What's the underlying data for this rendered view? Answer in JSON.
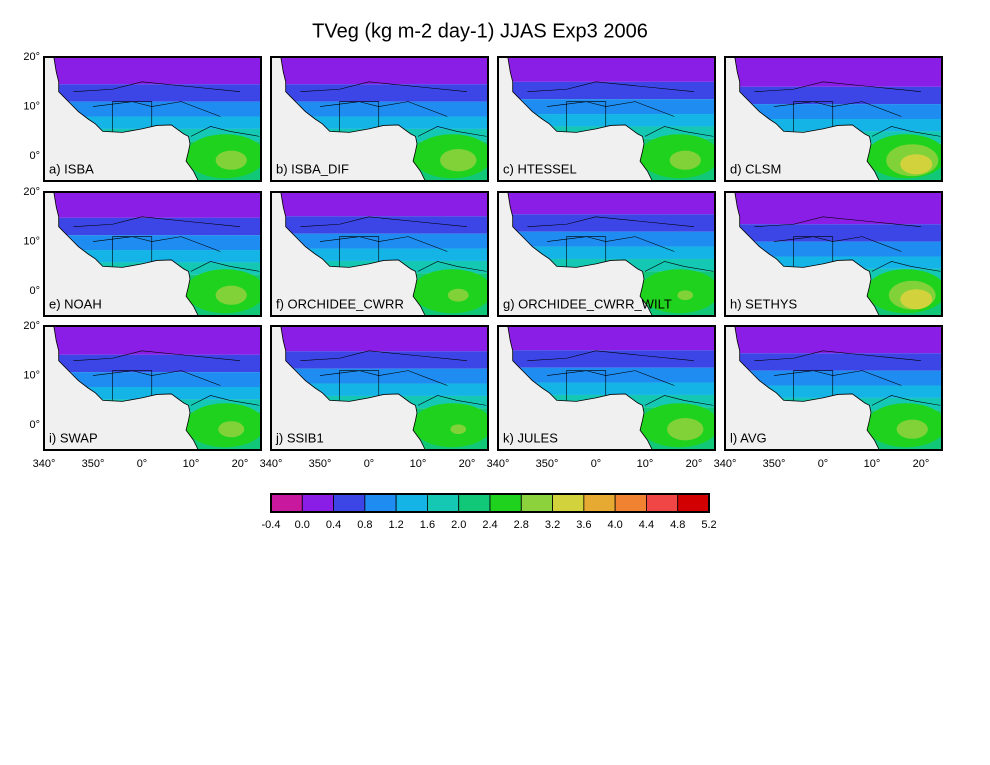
{
  "title": "TVeg (kg m-2 day-1) JJAS Exp3 2006",
  "panels": [
    "a) ISBA",
    "b) ISBA_DIF",
    "c) HTESSEL",
    "d) CLSM",
    "e) NOAH",
    "f) ORCHIDEE_CWRR",
    "g) ORCHIDEE_CWRR_WILT",
    "h) SETHYS",
    "i) SWAP",
    "j) SSIB1",
    "k) JULES",
    "l) AVG"
  ],
  "lat_labels": [
    "20°",
    "10°",
    "0°"
  ],
  "lon_labels": [
    "340°",
    "350°",
    "0°",
    "10°",
    "20°"
  ],
  "colorbar": {
    "colors": [
      "#c8199e",
      "#8a1ee6",
      "#3c46e6",
      "#1e8cf0",
      "#14b4e6",
      "#14c8b4",
      "#10c878",
      "#1ed21e",
      "#8cd23c",
      "#d2d23c",
      "#e6aa32",
      "#f08232",
      "#f04646",
      "#d20000"
    ],
    "labels": [
      "-0.4",
      "0.0",
      "0.4",
      "0.8",
      "1.2",
      "1.6",
      "2.0",
      "2.4",
      "2.8",
      "3.2",
      "3.6",
      "4.0",
      "4.4",
      "4.8",
      "5.2"
    ]
  }
}
